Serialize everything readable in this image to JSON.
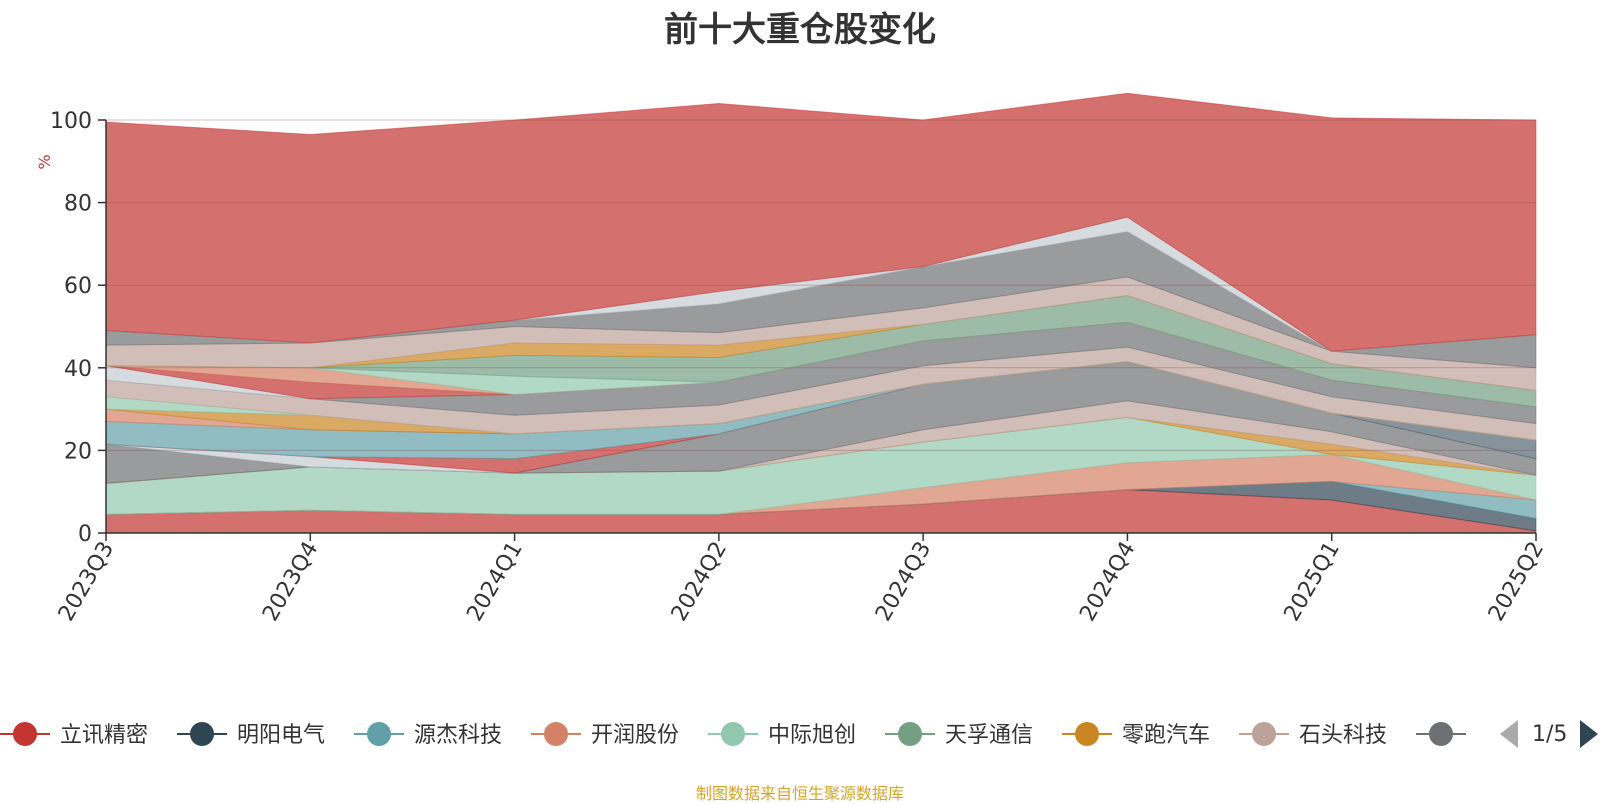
{
  "chart_data": {
    "type": "area",
    "title": "前十大重仓股变化",
    "ylabel": "%",
    "ylim": [
      0,
      100
    ],
    "yticks": [
      0,
      20,
      40,
      60,
      80,
      100
    ],
    "categories": [
      "2023Q3",
      "2023Q4",
      "2024Q1",
      "2024Q2",
      "2024Q3",
      "2024Q4",
      "2025Q1",
      "2025Q2"
    ],
    "grid": true,
    "stacked": true,
    "legend_position": "bottom",
    "legend_page": "1/5",
    "series": [
      {
        "name": "立讯精密",
        "color": "#c23531",
        "values": [
          4.5,
          5.5,
          4.5,
          4.5,
          7.0,
          10.5,
          8.0,
          0.5
        ]
      },
      {
        "name": "明阳电气",
        "color": "#2f4554",
        "values": [
          0.0,
          0.0,
          0.0,
          0.0,
          0.0,
          0.0,
          4.5,
          3.0
        ]
      },
      {
        "name": "源杰科技",
        "color": "#61a0a8",
        "values": [
          0.0,
          0.0,
          0.0,
          0.0,
          0.0,
          0.0,
          0.0,
          4.5
        ]
      },
      {
        "name": "开润股份",
        "color": "#d48265",
        "values": [
          0.0,
          0.0,
          0.0,
          0.0,
          4.0,
          6.5,
          6.5,
          0.0
        ]
      },
      {
        "name": "中际旭创",
        "color": "#91c7ae",
        "values": [
          7.5,
          10.5,
          10.0,
          10.5,
          11.0,
          11.0,
          0.0,
          6.0
        ]
      },
      {
        "name": "天孚通信",
        "color": "#749f83",
        "values": [
          0.0,
          0.0,
          0.0,
          0.0,
          0.0,
          0.0,
          0.0,
          0.0
        ]
      },
      {
        "name": "零跑汽车",
        "color": "#ca8622",
        "values": [
          0.0,
          0.0,
          0.0,
          0.0,
          0.0,
          0.0,
          2.5,
          0.0
        ]
      },
      {
        "name": "石头科技",
        "color": "#bda29a",
        "values": [
          0.0,
          0.0,
          0.0,
          0.0,
          3.0,
          4.0,
          3.0,
          0.0
        ]
      },
      {
        "name": "",
        "color": "#6e7074",
        "values": [
          9.5,
          0.0,
          0.0,
          9.0,
          11.0,
          9.5,
          4.5,
          4.0
        ]
      },
      {
        "name": "",
        "color": "#546570",
        "values": [
          0.0,
          0.0,
          0.0,
          0.0,
          0.0,
          0.0,
          0.0,
          4.5
        ]
      },
      {
        "name": "",
        "color": "#c4ccd3",
        "values": [
          0.0,
          2.5,
          0.0,
          0.0,
          0.0,
          0.0,
          0.0,
          0.0
        ]
      },
      {
        "name": "",
        "color": "#c23531",
        "values": [
          0.0,
          0.0,
          3.5,
          0.0,
          0.0,
          0.0,
          0.0,
          0.0
        ]
      },
      {
        "name": "",
        "color": "#61a0a8",
        "values": [
          5.5,
          6.5,
          6.0,
          2.5,
          0.0,
          0.0,
          0.0,
          0.0
        ]
      },
      {
        "name": "",
        "color": "#d48265",
        "values": [
          3.0,
          0.0,
          0.0,
          0.0,
          0.0,
          0.0,
          0.0,
          0.0
        ]
      },
      {
        "name": "",
        "color": "#ca8622",
        "values": [
          0.0,
          3.5,
          0.0,
          0.0,
          0.0,
          0.0,
          0.0,
          0.0
        ]
      },
      {
        "name": "",
        "color": "#91c7ae",
        "values": [
          3.0,
          0.0,
          0.0,
          0.0,
          0.0,
          0.0,
          0.0,
          0.0
        ]
      },
      {
        "name": "",
        "color": "#bda29a",
        "values": [
          4.0,
          4.0,
          4.5,
          4.5,
          4.5,
          3.5,
          4.0,
          4.0
        ]
      },
      {
        "name": "",
        "color": "#6e7074",
        "values": [
          0.0,
          0.0,
          5.0,
          5.5,
          6.0,
          6.0,
          4.0,
          4.0
        ]
      },
      {
        "name": "",
        "color": "#c4ccd3",
        "values": [
          3.5,
          0.0,
          0.0,
          0.0,
          0.0,
          0.0,
          0.0,
          0.0
        ]
      },
      {
        "name": "",
        "color": "#c23531",
        "values": [
          0.0,
          4.0,
          0.0,
          0.0,
          0.0,
          0.0,
          0.0,
          0.0
        ]
      },
      {
        "name": "",
        "color": "#d48265",
        "values": [
          0.0,
          3.5,
          0.0,
          0.0,
          0.0,
          0.0,
          0.0,
          0.0
        ]
      },
      {
        "name": "",
        "color": "#91c7ae",
        "values": [
          0.0,
          0.0,
          4.5,
          0.0,
          0.0,
          0.0,
          0.0,
          0.0
        ]
      },
      {
        "name": "",
        "color": "#749f83",
        "values": [
          0.0,
          0.0,
          5.0,
          6.0,
          4.0,
          6.5,
          4.0,
          4.0
        ]
      },
      {
        "name": "",
        "color": "#ca8622",
        "values": [
          0.0,
          0.0,
          3.0,
          3.0,
          0.0,
          0.0,
          0.0,
          0.0
        ]
      },
      {
        "name": "",
        "color": "#bda29a",
        "values": [
          5.0,
          6.0,
          4.0,
          3.0,
          4.0,
          4.5,
          3.0,
          5.5
        ]
      },
      {
        "name": "",
        "color": "#6e7074",
        "values": [
          3.5,
          0.0,
          1.5,
          7.0,
          10.0,
          11.0,
          0.0,
          8.0
        ]
      },
      {
        "name": "",
        "color": "#c4ccd3",
        "values": [
          0.0,
          0.0,
          0.0,
          3.0,
          0.0,
          3.5,
          0.0,
          0.0
        ]
      },
      {
        "name": "",
        "color": "#c23531",
        "values": [
          50.5,
          50.5,
          48.5,
          45.5,
          35.5,
          30.0,
          56.5,
          52.0
        ]
      }
    ]
  },
  "footer": {
    "source_note": "制图数据来自恒生聚源数据库"
  }
}
